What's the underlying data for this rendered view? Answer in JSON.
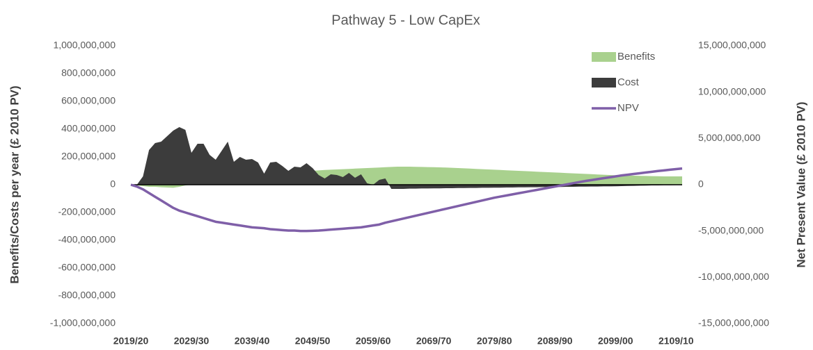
{
  "chart_data": {
    "type": "area",
    "title": "Pathway 5 - Low CapEx",
    "y_label": "Benefits/Costs per year (£ 2010 PV)",
    "y2_label": "Net Present Value (£ 2010 PV)",
    "legend": "top-right",
    "categories": [
      "2019/20",
      null,
      null,
      null,
      null,
      null,
      null,
      null,
      null,
      null,
      "2029/30",
      null,
      null,
      null,
      null,
      null,
      null,
      null,
      null,
      null,
      "2039/40",
      null,
      null,
      null,
      null,
      null,
      null,
      null,
      null,
      null,
      "2049/50",
      null,
      null,
      null,
      null,
      null,
      null,
      null,
      null,
      null,
      "2059/60",
      null,
      null,
      null,
      null,
      null,
      null,
      null,
      null,
      null,
      "2069/70",
      null,
      null,
      null,
      null,
      null,
      null,
      null,
      null,
      null,
      "2079/80",
      null,
      null,
      null,
      null,
      null,
      null,
      null,
      null,
      null,
      "2089/90",
      null,
      null,
      null,
      null,
      null,
      null,
      null,
      null,
      null,
      "2099/00",
      null,
      null,
      null,
      null,
      null,
      null,
      null,
      null,
      null,
      "2109/10",
      null
    ],
    "series": [
      {
        "name": "Benefits",
        "kind": "area",
        "color": "#a9d18e",
        "values": [
          0,
          -5000000,
          -10000000,
          -15000000,
          -15000000,
          -18000000,
          -20000000,
          -22000000,
          -15000000,
          -5000000,
          0,
          5000000,
          10000000,
          15000000,
          20000000,
          25000000,
          30000000,
          35000000,
          40000000,
          45000000,
          50000000,
          55000000,
          60000000,
          65000000,
          70000000,
          75000000,
          80000000,
          85000000,
          90000000,
          95000000,
          100000000,
          103000000,
          106000000,
          108000000,
          110000000,
          112000000,
          114000000,
          116000000,
          118000000,
          120000000,
          122000000,
          124000000,
          126000000,
          128000000,
          130000000,
          130000000,
          130000000,
          129000000,
          128000000,
          127000000,
          126000000,
          125000000,
          124000000,
          122000000,
          120000000,
          118000000,
          116000000,
          114000000,
          112000000,
          110000000,
          108000000,
          106000000,
          104000000,
          102000000,
          100000000,
          98000000,
          96000000,
          94000000,
          92000000,
          90000000,
          88000000,
          86000000,
          84000000,
          82000000,
          80000000,
          78000000,
          76000000,
          74000000,
          72000000,
          70000000,
          68000000,
          67000000,
          66000000,
          65000000,
          64000000,
          63000000,
          62000000,
          61000000,
          60000000,
          60000000,
          60000000,
          60000000
        ]
      },
      {
        "name": "Cost",
        "kind": "area",
        "color": "#3c3c3c",
        "values": [
          0,
          0,
          60000000,
          250000000,
          300000000,
          310000000,
          350000000,
          390000000,
          415000000,
          395000000,
          230000000,
          295000000,
          295000000,
          215000000,
          180000000,
          245000000,
          310000000,
          165000000,
          200000000,
          180000000,
          185000000,
          160000000,
          80000000,
          160000000,
          165000000,
          135000000,
          100000000,
          130000000,
          125000000,
          155000000,
          120000000,
          70000000,
          45000000,
          75000000,
          70000000,
          55000000,
          85000000,
          50000000,
          75000000,
          10000000,
          0,
          35000000,
          45000000,
          -30000000,
          -30000000,
          -30000000,
          -28000000,
          -28000000,
          -27000000,
          -27000000,
          -26000000,
          -26000000,
          -25000000,
          -25000000,
          -24000000,
          -24000000,
          -23000000,
          -23000000,
          -22000000,
          -22000000,
          -21000000,
          -21000000,
          -20000000,
          -20000000,
          -19000000,
          -19000000,
          -18000000,
          -18000000,
          -17000000,
          -17000000,
          -16000000,
          -16000000,
          -15000000,
          -15000000,
          -14000000,
          -14000000,
          -13000000,
          -13000000,
          -12000000,
          -12000000,
          -11000000,
          -10000000,
          -9000000,
          -8000000,
          -7000000,
          -6000000,
          -5000000,
          -5000000,
          -4000000,
          -4000000,
          -3000000,
          -3000000
        ]
      },
      {
        "name": "NPV",
        "kind": "line",
        "axis": "y2",
        "color": "#7f5fa8",
        "values": [
          0,
          -200000000,
          -500000000,
          -900000000,
          -1300000000,
          -1700000000,
          -2100000000,
          -2500000000,
          -2800000000,
          -3000000000,
          -3200000000,
          -3400000000,
          -3600000000,
          -3800000000,
          -4000000000,
          -4100000000,
          -4200000000,
          -4300000000,
          -4400000000,
          -4500000000,
          -4600000000,
          -4650000000,
          -4700000000,
          -4800000000,
          -4850000000,
          -4900000000,
          -4950000000,
          -4950000000,
          -5000000000,
          -5000000000,
          -4980000000,
          -4950000000,
          -4900000000,
          -4850000000,
          -4800000000,
          -4750000000,
          -4700000000,
          -4650000000,
          -4600000000,
          -4500000000,
          -4400000000,
          -4300000000,
          -4100000000,
          -3950000000,
          -3800000000,
          -3650000000,
          -3500000000,
          -3350000000,
          -3200000000,
          -3050000000,
          -2900000000,
          -2750000000,
          -2600000000,
          -2450000000,
          -2300000000,
          -2150000000,
          -2000000000,
          -1850000000,
          -1700000000,
          -1550000000,
          -1400000000,
          -1280000000,
          -1160000000,
          -1040000000,
          -920000000,
          -800000000,
          -680000000,
          -560000000,
          -440000000,
          -320000000,
          -200000000,
          -80000000,
          40000000,
          160000000,
          280000000,
          400000000,
          500000000,
          600000000,
          700000000,
          800000000,
          900000000,
          1000000000,
          1080000000,
          1160000000,
          1240000000,
          1320000000,
          1400000000,
          1480000000,
          1550000000,
          1620000000,
          1690000000,
          1750000000
        ]
      }
    ],
    "ylim": [
      -1000000000,
      1000000000
    ],
    "yticks": [
      {
        "value": -1000000000,
        "label": "-1,000,000,000"
      },
      {
        "value": -800000000,
        "label": "-800,000,000"
      },
      {
        "value": -600000000,
        "label": "-600,000,000"
      },
      {
        "value": -400000000,
        "label": "-400,000,000"
      },
      {
        "value": -200000000,
        "label": "-200,000,000"
      },
      0,
      {
        "value": 200000000,
        "label": "200,000,000"
      },
      {
        "value": 400000000,
        "label": "400,000,000"
      },
      {
        "value": 600000000,
        "label": "600,000,000"
      },
      {
        "value": 800000000,
        "label": "800,000,000"
      },
      {
        "value": 1000000000,
        "label": "1,000,000,000"
      }
    ],
    "y2lim": [
      -15000000000,
      15000000000
    ],
    "y2ticks": [
      {
        "value": -15000000000,
        "label": "-15,000,000,000"
      },
      {
        "value": -10000000000,
        "label": "-10,000,000,000"
      },
      {
        "value": -5000000000,
        "label": "-5,000,000,000"
      },
      0,
      {
        "value": 5000000000,
        "label": "5,000,000,000"
      },
      {
        "value": 10000000000,
        "label": "10,000,000,000"
      },
      {
        "value": 15000000000,
        "label": "15,000,000,000"
      }
    ]
  }
}
